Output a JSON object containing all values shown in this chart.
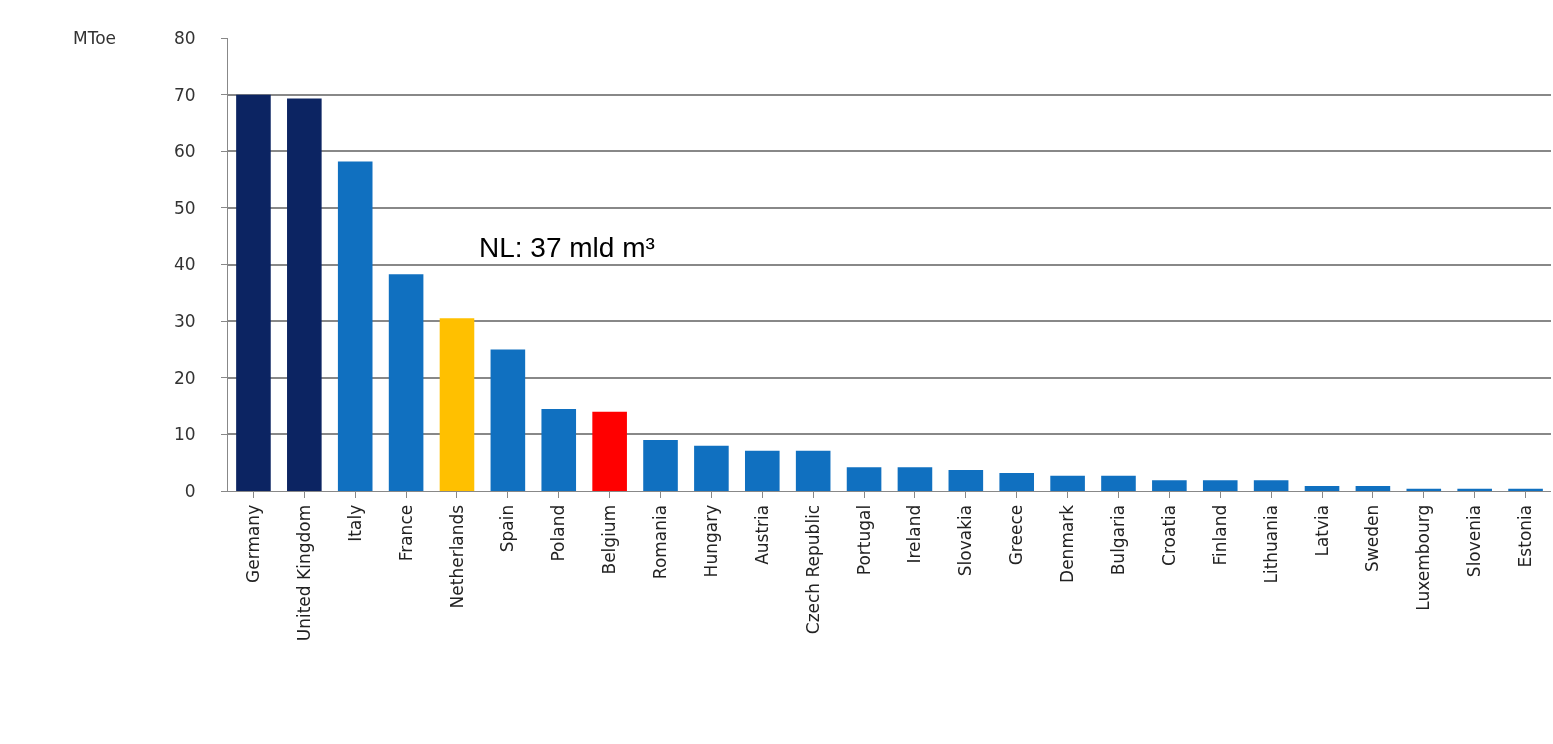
{
  "chart_data": {
    "type": "bar",
    "ylabel": "MToe",
    "categories": [
      "Germany",
      "United Kingdom",
      "Italy",
      "France",
      "Netherlands",
      "Spain",
      "Poland",
      "Belgium",
      "Romania",
      "Hungary",
      "Austria",
      "Czech Republic",
      "Portugal",
      "Ireland",
      "Slovakia",
      "Greece",
      "Denmark",
      "Bulgaria",
      "Croatia",
      "Finland",
      "Lithuania",
      "Latvia",
      "Sweden",
      "Luxembourg",
      "Slovenia",
      "Estonia"
    ],
    "values": [
      70,
      69.3,
      58.2,
      38.3,
      30.5,
      25,
      14.5,
      14,
      9,
      8,
      7.1,
      7.1,
      4.2,
      4.2,
      3.7,
      3.2,
      2.7,
      2.7,
      1.9,
      1.9,
      1.9,
      0.9,
      0.9,
      0.4,
      0.4,
      0.4
    ],
    "colors": [
      "#0c2462",
      "#0c2462",
      "#1070c0",
      "#1070c0",
      "#ffc000",
      "#1070c0",
      "#1070c0",
      "#ff0000",
      "#1070c0",
      "#1070c0",
      "#1070c0",
      "#1070c0",
      "#1070c0",
      "#1070c0",
      "#1070c0",
      "#1070c0",
      "#1070c0",
      "#1070c0",
      "#1070c0",
      "#1070c0",
      "#1070c0",
      "#1070c0",
      "#1070c0",
      "#1070c0",
      "#1070c0",
      "#1070c0"
    ],
    "ylim": [
      0,
      80
    ],
    "yticks": [
      0,
      10,
      20,
      30,
      40,
      50,
      60,
      70,
      80
    ],
    "grid": "y",
    "annotations": [
      "NL: 37 mld m³"
    ]
  }
}
